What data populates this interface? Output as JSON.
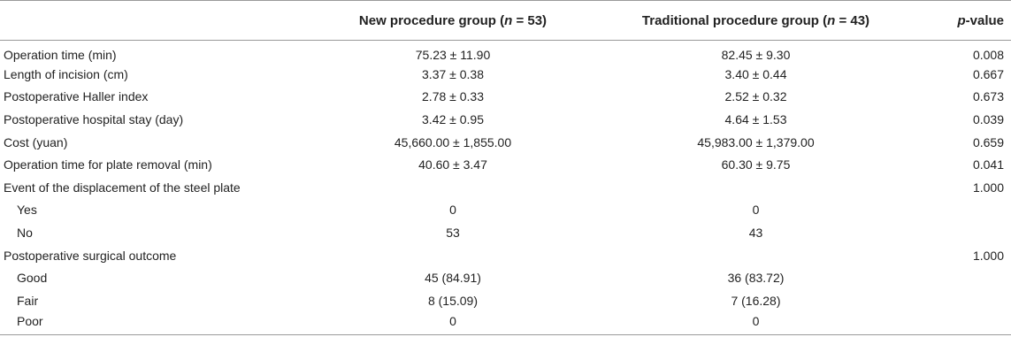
{
  "table": {
    "headers": {
      "label": "",
      "new_prefix": "New procedure group (",
      "new_n": "n",
      "new_suffix": " = 53)",
      "trad_prefix": "Traditional procedure group (",
      "trad_n": "n",
      "trad_suffix": " = 43)",
      "p_prefix": "p",
      "p_suffix": "-value"
    },
    "rows": [
      {
        "label": "Operation time (min)",
        "new": "75.23 ± 11.90",
        "trad": "82.45 ± 9.30",
        "p": "0.008",
        "sub": false
      },
      {
        "label": "Length of incision (cm)",
        "new": "3.37 ± 0.38",
        "trad": "3.40 ± 0.44",
        "p": "0.667",
        "sub": false
      },
      {
        "label": "Postoperative Haller index",
        "new": "2.78 ± 0.33",
        "trad": "2.52 ± 0.32",
        "p": "0.673",
        "sub": false
      },
      {
        "label": "Postoperative hospital stay (day)",
        "new": "3.42 ± 0.95",
        "trad": "4.64 ± 1.53",
        "p": "0.039",
        "sub": false
      },
      {
        "label": "Cost (yuan)",
        "new": "45,660.00 ± 1,855.00",
        "trad": "45,983.00 ± 1,379.00",
        "p": "0.659",
        "sub": false
      },
      {
        "label": "Operation time for plate removal (min)",
        "new": "40.60 ± 3.47",
        "trad": "60.30 ± 9.75",
        "p": "0.041",
        "sub": false
      },
      {
        "label": "Event of the displacement of the steel plate",
        "new": "",
        "trad": "",
        "p": "1.000",
        "sub": false
      },
      {
        "label": "Yes",
        "new": "0",
        "trad": "0",
        "p": "",
        "sub": true
      },
      {
        "label": "No",
        "new": "53",
        "trad": "43",
        "p": "",
        "sub": true
      },
      {
        "label": "Postoperative surgical outcome",
        "new": "",
        "trad": "",
        "p": "1.000",
        "sub": false
      },
      {
        "label": "Good",
        "new": "45 (84.91)",
        "trad": "36 (83.72)",
        "p": "",
        "sub": true
      },
      {
        "label": "Fair",
        "new": "8 (15.09)",
        "trad": "7 (16.28)",
        "p": "",
        "sub": true
      },
      {
        "label": "Poor",
        "new": "0",
        "trad": "0",
        "p": "",
        "sub": true
      }
    ]
  }
}
